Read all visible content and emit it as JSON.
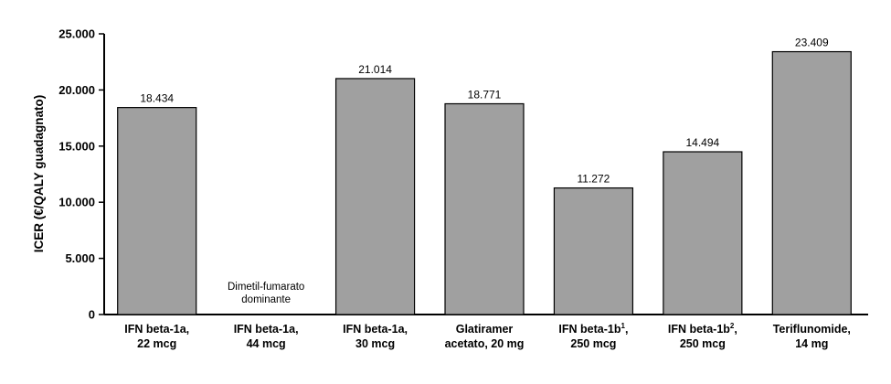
{
  "chart_data": {
    "type": "bar",
    "ylabel": "ICER (€/QALY guadagnato)",
    "ylim": [
      0,
      25000
    ],
    "yticks": [
      0,
      5000,
      10000,
      15000,
      20000,
      25000
    ],
    "ytick_labels": [
      "0",
      "5.000",
      "10.000",
      "15.000",
      "20.000",
      "25.000"
    ],
    "grid": false,
    "bar_color": "#a0a0a0",
    "categories": [
      {
        "line1": "IFN beta-1a,",
        "line2": "22 mcg"
      },
      {
        "line1": "IFN beta-1a,",
        "line2": "44 mcg"
      },
      {
        "line1": "IFN beta-1a,",
        "line2": "30 mcg"
      },
      {
        "line1": "Glatiramer",
        "line2": "acetato, 20 mg"
      },
      {
        "line1": "IFN beta-1b",
        "sup": "1",
        "line1_end": ",",
        "line2": "250 mcg"
      },
      {
        "line1": "IFN beta-1b",
        "sup": "2",
        "line1_end": ",",
        "line2": "250 mcg"
      },
      {
        "line1": "Teriflunomide,",
        "line2": "14 mg"
      }
    ],
    "values": [
      18434,
      null,
      21014,
      18771,
      11272,
      14494,
      23409
    ],
    "value_labels": [
      "18.434",
      "",
      "21.014",
      "18.771",
      "11.272",
      "14.494",
      "23.409"
    ],
    "annotations": [
      {
        "category_index": 1,
        "lines": [
          "Dimetil-fumarato",
          "dominante"
        ]
      }
    ]
  }
}
